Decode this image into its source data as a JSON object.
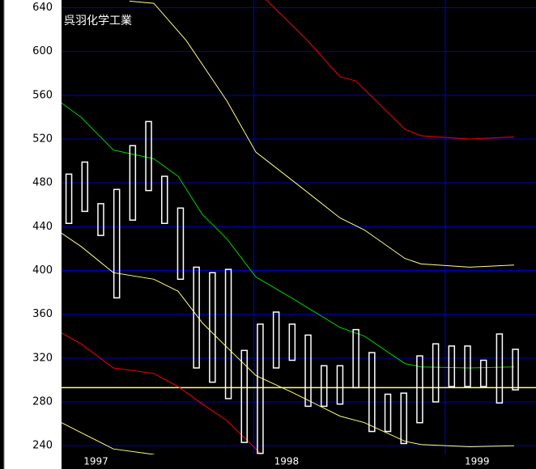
{
  "chart_data": {
    "type": "candlestick",
    "title": "呉羽化学工業",
    "xlim": [
      -0.46,
      29.29
    ],
    "ylim": [
      232,
      647
    ],
    "yticks": [
      240,
      280,
      320,
      360,
      400,
      440,
      480,
      520,
      560,
      600,
      640
    ],
    "xgrid": [
      11.6,
      23.6
    ],
    "xticks": [
      {
        "value": 1.7,
        "label": "1997"
      },
      {
        "value": 13.65,
        "label": "1998"
      },
      {
        "value": 25.6,
        "label": "1999"
      }
    ],
    "grid_color": "#0000c8",
    "box_color": "#ffffff",
    "boxes": {
      "x": [
        0,
        1,
        2,
        3,
        4,
        5,
        6,
        7,
        8,
        9,
        10,
        11,
        12,
        13,
        14,
        15,
        16,
        17,
        18,
        19,
        20,
        21,
        22,
        23,
        24,
        25,
        26,
        27,
        28
      ],
      "top": [
        488,
        499,
        461,
        474,
        514,
        536,
        486,
        457,
        403,
        398,
        401,
        327,
        351,
        362,
        351,
        341,
        313,
        313,
        346,
        325,
        287,
        288,
        322,
        333,
        331,
        331,
        318,
        342,
        328
      ],
      "bottom": [
        443,
        454,
        432,
        375,
        446,
        473,
        443,
        392,
        311,
        298,
        283,
        243,
        233,
        311,
        318,
        276,
        276,
        278,
        293,
        253,
        253,
        242,
        261,
        280,
        294,
        294,
        294,
        279,
        291
      ]
    },
    "hlines": [
      {
        "value": 293,
        "color": "#ffff80"
      }
    ],
    "lines": [
      {
        "color": "#00d000",
        "x": [
          -0.46,
          0.76,
          2.79,
          5.33,
          6.85,
          8.38,
          9.9,
          11.73,
          13.96,
          17.0,
          18.53,
          21.07,
          22.08,
          25.13,
          27.92
        ],
        "values": [
          553,
          540,
          510,
          502,
          486,
          451,
          429,
          394,
          375,
          348,
          340,
          315,
          312,
          311,
          312
        ]
      },
      {
        "color": "#ffff80",
        "x": [
          3.8,
          5.33,
          7.36,
          9.9,
          11.73,
          14.47,
          17.0,
          18.53,
          21.07,
          22.08,
          25.13,
          27.92
        ],
        "values": [
          646,
          644,
          610,
          555,
          508,
          477,
          448,
          437,
          411,
          406,
          403,
          405
        ]
      },
      {
        "color": "#ff0000",
        "x": [
          12.4,
          14.97,
          17.0,
          18.0,
          21.07,
          22.08,
          25.13,
          27.92
        ],
        "values": [
          647,
          610,
          577,
          573,
          529,
          523,
          520,
          522
        ]
      },
      {
        "color": "#ffff80",
        "x": [
          -0.46,
          0.76,
          2.79,
          5.33,
          6.85,
          8.38,
          9.9,
          11.73,
          13.96,
          17.0,
          18.53,
          21.07,
          22.08,
          25.13,
          27.92
        ],
        "values": [
          434,
          422,
          398,
          392,
          381,
          352,
          330,
          304,
          289,
          267,
          261,
          244,
          241,
          239,
          240
        ]
      },
      {
        "color": "#ff0000",
        "x": [
          -0.46,
          0.76,
          2.79,
          5.33,
          6.85,
          8.38,
          9.9,
          11.73,
          12.94
        ],
        "values": [
          343,
          333,
          311,
          306,
          294,
          278,
          263,
          237,
          219
        ]
      },
      {
        "color": "#ffff80",
        "x": [
          -0.46,
          0.76,
          2.79,
          5.33,
          7.36
        ],
        "values": [
          261,
          252,
          237,
          232,
          219
        ]
      }
    ]
  }
}
